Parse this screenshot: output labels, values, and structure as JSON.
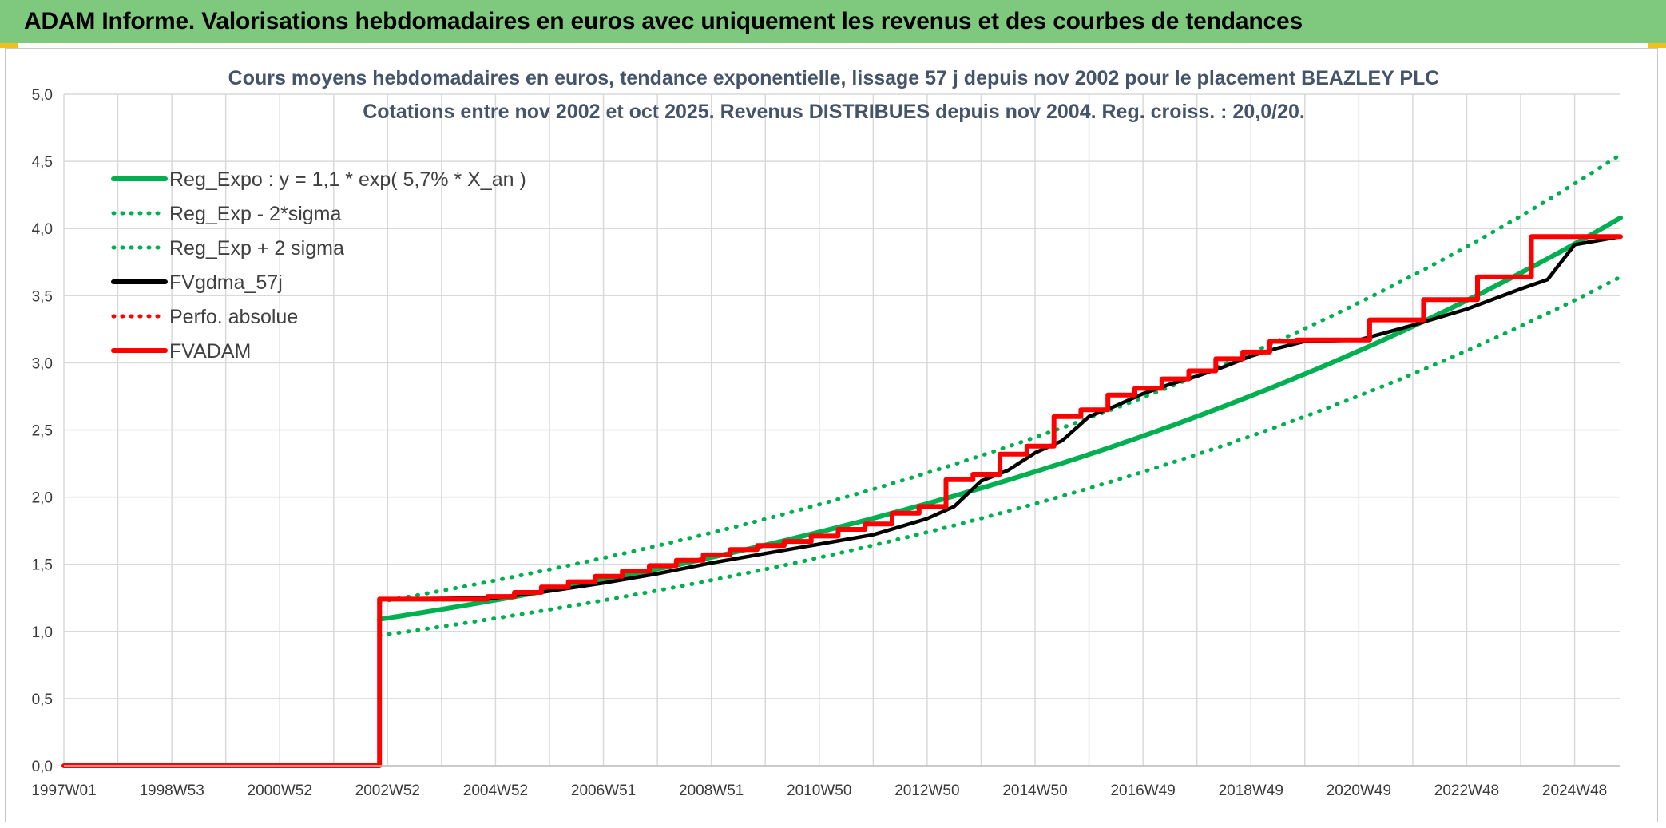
{
  "header": {
    "title": "ADAM Informe. Valorisations hebdomadaires en euros avec uniquement les revenus et des courbes de tendances"
  },
  "colors": {
    "header_bg": "#7fc97f",
    "reg_green": "#00b050",
    "fv_black": "#000000",
    "adam_red": "#ff0000"
  },
  "chart_data": {
    "type": "line",
    "title": "Cours moyens hebdomadaires en euros, tendance exponentielle, lissage 57 j depuis nov 2002 pour le placement BEAZLEY PLC",
    "subtitle": "Cotations entre nov 2002 et oct 2025. Revenus DISTRIBUES depuis nov 2004. Reg. croiss. : 20,0/20.",
    "xlabel": "",
    "ylabel": "",
    "x_range": [
      1997.0,
      2025.85
    ],
    "ylim": [
      0,
      5
    ],
    "y_ticks": [
      "0,0",
      "0,5",
      "1,0",
      "1,5",
      "2,0",
      "2,5",
      "3,0",
      "3,5",
      "4,0",
      "4,5",
      "5,0"
    ],
    "y_tick_values": [
      0,
      0.5,
      1,
      1.5,
      2,
      2.5,
      3,
      3.5,
      4,
      4.5,
      5
    ],
    "x_ticks": [
      "1997W01",
      "1998W53",
      "2000W52",
      "2002W52",
      "2004W52",
      "2006W51",
      "2008W51",
      "2010W50",
      "2012W50",
      "2014W50",
      "2016W49",
      "2018W49",
      "2020W49",
      "2022W48",
      "2024W48"
    ],
    "x_tick_values": [
      1997.0,
      1999.0,
      2001.0,
      2003.0,
      2005.0,
      2007.0,
      2009.0,
      2011.0,
      2013.0,
      2015.0,
      2017.0,
      2019.0,
      2021.0,
      2023.0,
      2025.0
    ],
    "grid": true,
    "legend_position": "top-left",
    "series": [
      {
        "name": "Reg_Expo : y = 1,1 * exp( 5,7% *  X_an )",
        "color": "#00b050",
        "style": "solid",
        "x": [
          2002.85,
          2005,
          2010,
          2015,
          2020,
          2025.85
        ],
        "y": [
          1.09,
          1.23,
          1.68,
          2.33,
          3.08,
          4.08
        ]
      },
      {
        "name": "Reg_Exp - 2*sigma",
        "color": "#00b050",
        "style": "dotted",
        "x": [
          2002.85,
          2005,
          2010,
          2015,
          2020,
          2025.85
        ],
        "y": [
          0.97,
          1.1,
          1.5,
          2.08,
          2.75,
          3.64
        ]
      },
      {
        "name": "Reg_Exp + 2 sigma",
        "color": "#00b050",
        "style": "dotted",
        "x": [
          2002.85,
          2005,
          2010,
          2015,
          2020,
          2025.85
        ],
        "y": [
          1.22,
          1.38,
          1.88,
          2.6,
          3.44,
          4.55
        ]
      },
      {
        "name": "FVgdma_57j",
        "color": "#000000",
        "style": "solid",
        "x": [
          1997.0,
          2002.85,
          2002.86,
          2005,
          2006,
          2007,
          2008,
          2009,
          2010,
          2011,
          2012,
          2013,
          2013.5,
          2014,
          2014.5,
          2015,
          2015.5,
          2016,
          2016.5,
          2017,
          2017.5,
          2018,
          2018.5,
          2019,
          2019.5,
          2020,
          2021,
          2022,
          2023,
          2024,
          2024.5,
          2025,
          2025.85
        ],
        "y": [
          0,
          0,
          1.24,
          1.25,
          1.3,
          1.36,
          1.43,
          1.51,
          1.58,
          1.65,
          1.72,
          1.84,
          1.93,
          2.12,
          2.2,
          2.33,
          2.42,
          2.6,
          2.68,
          2.77,
          2.84,
          2.9,
          2.97,
          3.05,
          3.11,
          3.16,
          3.17,
          3.28,
          3.4,
          3.55,
          3.62,
          3.88,
          3.94
        ]
      },
      {
        "name": "Perfo. absolue",
        "color": "#ff0000",
        "style": "dotted",
        "x": [],
        "y": []
      },
      {
        "name": "FVADAM",
        "color": "#ff0000",
        "style": "solid",
        "x": [
          1997.0,
          2002.85,
          2002.85,
          2004.85,
          2004.85,
          2005.35,
          2005.35,
          2005.85,
          2005.85,
          2006.35,
          2006.35,
          2006.85,
          2006.85,
          2007.35,
          2007.35,
          2007.85,
          2007.85,
          2008.35,
          2008.35,
          2008.85,
          2008.85,
          2009.35,
          2009.35,
          2009.85,
          2009.85,
          2010.35,
          2010.35,
          2010.85,
          2010.85,
          2011.35,
          2011.35,
          2011.85,
          2011.85,
          2012.35,
          2012.35,
          2012.85,
          2012.85,
          2013.35,
          2013.35,
          2013.85,
          2013.85,
          2014.35,
          2014.35,
          2014.85,
          2014.85,
          2015.35,
          2015.35,
          2015.85,
          2015.85,
          2016.35,
          2016.35,
          2016.85,
          2016.85,
          2017.35,
          2017.35,
          2017.85,
          2017.85,
          2018.35,
          2018.35,
          2018.85,
          2018.85,
          2019.35,
          2019.35,
          2019.85,
          2019.85,
          2021.2,
          2021.2,
          2022.2,
          2022.2,
          2023.2,
          2023.2,
          2024.2,
          2024.2,
          2025.1,
          2025.1,
          2025.85
        ],
        "y": [
          0,
          0,
          1.24,
          1.24,
          1.26,
          1.26,
          1.29,
          1.29,
          1.33,
          1.33,
          1.37,
          1.37,
          1.41,
          1.41,
          1.45,
          1.45,
          1.49,
          1.49,
          1.53,
          1.53,
          1.57,
          1.57,
          1.61,
          1.61,
          1.64,
          1.64,
          1.67,
          1.67,
          1.71,
          1.71,
          1.76,
          1.76,
          1.8,
          1.8,
          1.88,
          1.88,
          1.93,
          1.93,
          2.13,
          2.13,
          2.17,
          2.17,
          2.32,
          2.32,
          2.38,
          2.38,
          2.6,
          2.6,
          2.65,
          2.65,
          2.76,
          2.76,
          2.81,
          2.81,
          2.88,
          2.88,
          2.94,
          2.94,
          3.03,
          3.03,
          3.08,
          3.08,
          3.16,
          3.16,
          3.17,
          3.17,
          3.32,
          3.32,
          3.47,
          3.47,
          3.64,
          3.64,
          3.94,
          3.94,
          3.94,
          3.94
        ]
      }
    ]
  }
}
